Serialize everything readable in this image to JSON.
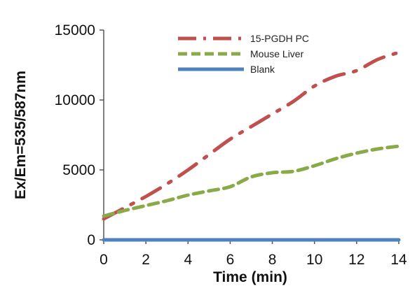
{
  "chart_data": {
    "type": "line",
    "xlabel": "Time (min)",
    "ylabel": "Ex/Em=535/587nm",
    "xlim": [
      0,
      14
    ],
    "ylim": [
      0,
      15000
    ],
    "x_ticks": [
      "0",
      "2",
      "4",
      "6",
      "8",
      "10",
      "12",
      "14"
    ],
    "y_ticks": [
      "0",
      "5000",
      "10000",
      "15000"
    ],
    "grid": false,
    "legend_position": "top-right",
    "series": [
      {
        "name": "15-PGDH PC",
        "color": "#c0504d",
        "style": "dash-dot",
        "x": [
          0,
          1,
          2,
          3,
          4,
          5,
          6,
          7,
          8,
          9,
          10,
          11,
          12,
          13,
          14
        ],
        "y": [
          1500,
          2300,
          3100,
          4000,
          5000,
          6100,
          7200,
          8100,
          9000,
          9900,
          11000,
          11700,
          12100,
          12900,
          13400
        ]
      },
      {
        "name": "Mouse Liver",
        "color": "#8aaa4a",
        "style": "dashed",
        "x": [
          0,
          1,
          2,
          3,
          4,
          5,
          6,
          7,
          8,
          9,
          10,
          11,
          12,
          13,
          14
        ],
        "y": [
          1700,
          2100,
          2450,
          2800,
          3200,
          3500,
          3800,
          4500,
          4800,
          4900,
          5300,
          5800,
          6200,
          6500,
          6700
        ]
      },
      {
        "name": "Blank",
        "color": "#4f81bd",
        "style": "solid",
        "x": [
          0,
          14
        ],
        "y": [
          0,
          0
        ]
      }
    ]
  }
}
